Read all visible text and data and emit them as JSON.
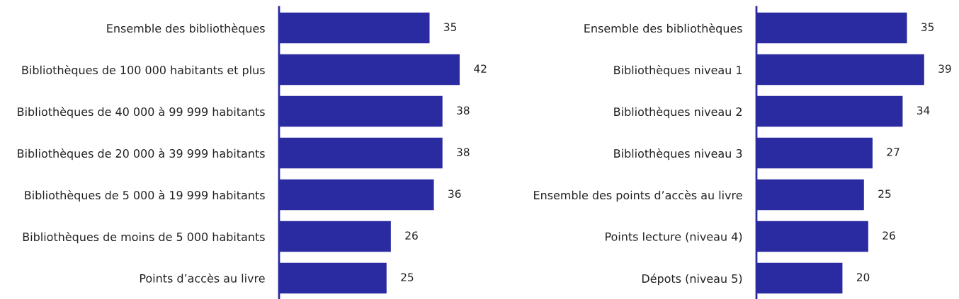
{
  "chart_data": [
    {
      "type": "bar",
      "orientation": "horizontal",
      "data_labels": true,
      "grid": false,
      "legend": false,
      "tick_labels": "y",
      "categories": [
        "Ensemble des bibliothèques",
        "Bibliothèques de 100 000 habitants et plus",
        "Bibliothèques de 40 000 à 99 999 habitants",
        "Bibliothèques de 20 000 à 39 999 habitants",
        "Bibliothèques de 5 000 à 19 999 habitants",
        "Bibliothèques de moins de 5 000 habitants",
        "Points d’accès au livre"
      ],
      "series": [
        {
          "color": "#2a2ba0",
          "values": [
            35,
            42,
            38,
            38,
            36,
            26,
            25
          ]
        }
      ]
    },
    {
      "type": "bar",
      "orientation": "horizontal",
      "data_labels": true,
      "grid": false,
      "legend": false,
      "tick_labels": "y",
      "categories": [
        "Ensemble des bibliothèques",
        "Bibliothèques niveau 1",
        "Bibliothèques niveau 2",
        "Bibliothèques niveau 3",
        "Ensemble des points d’accès au livre",
        "Points lecture (niveau 4)",
        "Dépots (niveau 5)"
      ],
      "series": [
        {
          "color": "#2a2ba0",
          "values": [
            35,
            39,
            34,
            27,
            25,
            26,
            20
          ]
        }
      ]
    }
  ]
}
